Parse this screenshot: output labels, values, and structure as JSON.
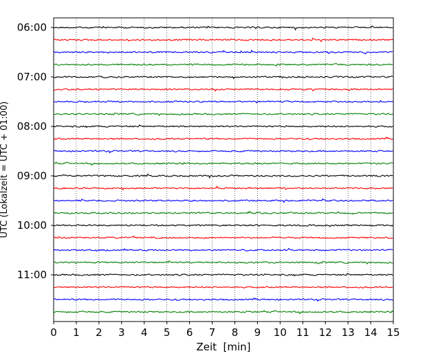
{
  "chart_data": {
    "type": "line",
    "subtype": "helicorder",
    "xlabel": "Zeit  [min]",
    "ylabel": "UTC (Lokalzeit = UTC + 01:00)",
    "xlim": [
      0,
      15
    ],
    "x_ticks": [
      "0",
      "1",
      "2",
      "3",
      "4",
      "5",
      "6",
      "7",
      "8",
      "9",
      "10",
      "11",
      "12",
      "13",
      "14",
      "15"
    ],
    "y_tick_labels": [
      "06:00",
      "07:00",
      "08:00",
      "09:00",
      "10:00",
      "11:00"
    ],
    "vertical_gridlines": true,
    "gridline_style": "dotted",
    "trace_interval_minutes": 15,
    "trace_start_times": [
      "06:00",
      "06:15",
      "06:30",
      "06:45",
      "07:00",
      "07:15",
      "07:30",
      "07:45",
      "08:00",
      "08:15",
      "08:30",
      "08:45",
      "09:00",
      "09:15",
      "09:30",
      "09:45",
      "10:00",
      "10:15",
      "10:30",
      "10:45",
      "11:00",
      "11:15",
      "11:30",
      "11:45"
    ],
    "trace_color_cycle": [
      "#000000",
      "#ff0000",
      "#0000ff",
      "#008000"
    ],
    "series_count": 24
  }
}
